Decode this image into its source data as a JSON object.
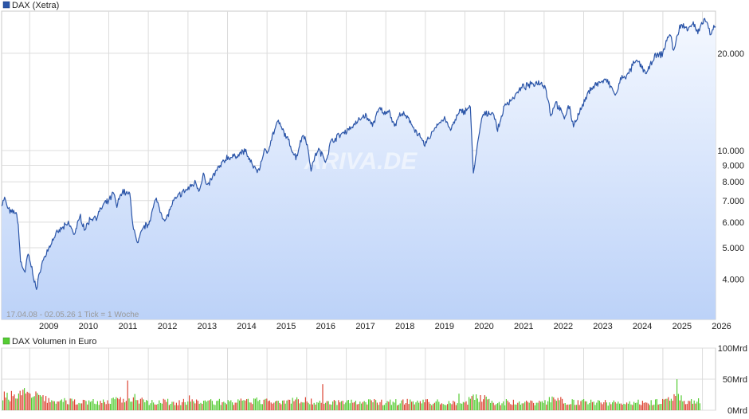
{
  "chart_data": [
    {
      "type": "area",
      "legend": "DAX (Xetra)",
      "x_labels": [
        "2009",
        "2010",
        "2011",
        "2012",
        "2013",
        "2014",
        "2015",
        "2016",
        "2017",
        "2018",
        "2019",
        "2020",
        "2021",
        "2022",
        "2023",
        "2024",
        "2025",
        "2026"
      ],
      "y_scale": "log",
      "y_ticks": [
        "4.000",
        "5.000",
        "6.000",
        "7.000",
        "8.000",
        "9.000",
        "10.000",
        "20.000"
      ],
      "y_tick_values": [
        4000,
        5000,
        6000,
        7000,
        8000,
        9000,
        10000,
        20000
      ],
      "ylim": [
        3000,
        27000
      ],
      "x_range": [
        "2008-04-17",
        "2026-05-02"
      ],
      "series_color": "#2b55a8",
      "info": "17.04.08 - 02.05.26    1 Tick = 1 Woche",
      "watermark": "ARIVA.DE",
      "points": [
        [
          "2008-04-17",
          6800
        ],
        [
          "2008-05-15",
          7100
        ],
        [
          "2008-06-15",
          6600
        ],
        [
          "2008-07-15",
          6400
        ],
        [
          "2008-08-15",
          6500
        ],
        [
          "2008-09-15",
          6100
        ],
        [
          "2008-10-10",
          4500
        ],
        [
          "2008-11-21",
          4200
        ],
        [
          "2008-12-15",
          4800
        ],
        [
          "2009-01-15",
          4400
        ],
        [
          "2009-03-06",
          3700
        ],
        [
          "2009-04-15",
          4400
        ],
        [
          "2009-06-15",
          4900
        ],
        [
          "2009-08-15",
          5400
        ],
        [
          "2009-10-15",
          5700
        ],
        [
          "2009-12-30",
          5950
        ],
        [
          "2010-02-15",
          5500
        ],
        [
          "2010-04-15",
          6250
        ],
        [
          "2010-05-25",
          5700
        ],
        [
          "2010-07-15",
          6150
        ],
        [
          "2010-09-15",
          6250
        ],
        [
          "2010-11-15",
          6800
        ],
        [
          "2010-12-30",
          6950
        ],
        [
          "2011-02-15",
          7400
        ],
        [
          "2011-03-15",
          6700
        ],
        [
          "2011-05-02",
          7500
        ],
        [
          "2011-07-15",
          7300
        ],
        [
          "2011-08-12",
          5900
        ],
        [
          "2011-09-23",
          5100
        ],
        [
          "2011-11-15",
          5800
        ],
        [
          "2011-12-30",
          5900
        ],
        [
          "2012-03-15",
          7100
        ],
        [
          "2012-06-01",
          6000
        ],
        [
          "2012-08-15",
          6900
        ],
        [
          "2012-10-15",
          7300
        ],
        [
          "2012-12-30",
          7600
        ],
        [
          "2013-03-15",
          8000
        ],
        [
          "2013-04-15",
          7500
        ],
        [
          "2013-05-22",
          8500
        ],
        [
          "2013-06-24",
          7700
        ],
        [
          "2013-09-15",
          8600
        ],
        [
          "2013-12-30",
          9550
        ],
        [
          "2014-02-15",
          9500
        ],
        [
          "2014-06-15",
          10000
        ],
        [
          "2014-08-08",
          9100
        ],
        [
          "2014-10-15",
          8600
        ],
        [
          "2014-12-05",
          10000
        ],
        [
          "2014-12-30",
          9800
        ],
        [
          "2015-02-15",
          11000
        ],
        [
          "2015-04-10",
          12300
        ],
        [
          "2015-06-30",
          11000
        ],
        [
          "2015-08-24",
          10000
        ],
        [
          "2015-09-25",
          9500
        ],
        [
          "2015-11-30",
          11300
        ],
        [
          "2015-12-30",
          10700
        ],
        [
          "2016-02-11",
          8800
        ],
        [
          "2016-04-15",
          10100
        ],
        [
          "2016-06-27",
          9300
        ],
        [
          "2016-08-15",
          10700
        ],
        [
          "2016-12-30",
          11500
        ],
        [
          "2017-03-15",
          12000
        ],
        [
          "2017-06-20",
          12900
        ],
        [
          "2017-08-29",
          12000
        ],
        [
          "2017-11-07",
          13500
        ],
        [
          "2017-12-30",
          12900
        ],
        [
          "2018-01-23",
          13500
        ],
        [
          "2018-03-23",
          11900
        ],
        [
          "2018-05-22",
          13100
        ],
        [
          "2018-08-15",
          12300
        ],
        [
          "2018-10-26",
          11200
        ],
        [
          "2018-12-27",
          10400
        ],
        [
          "2019-04-15",
          12000
        ],
        [
          "2019-07-04",
          12600
        ],
        [
          "2019-08-15",
          11500
        ],
        [
          "2019-11-15",
          13200
        ],
        [
          "2019-12-30",
          13250
        ],
        [
          "2020-02-19",
          13800
        ],
        [
          "2020-03-18",
          8500
        ],
        [
          "2020-06-08",
          12800
        ],
        [
          "2020-09-15",
          13200
        ],
        [
          "2020-10-30",
          11550
        ],
        [
          "2020-12-30",
          13700
        ],
        [
          "2021-03-15",
          14500
        ],
        [
          "2021-06-15",
          15700
        ],
        [
          "2021-08-13",
          15900
        ],
        [
          "2021-11-18",
          16300
        ],
        [
          "2021-12-30",
          15900
        ],
        [
          "2022-01-05",
          16200
        ],
        [
          "2022-03-07",
          12800
        ],
        [
          "2022-04-15",
          14200
        ],
        [
          "2022-07-05",
          12600
        ],
        [
          "2022-08-15",
          13800
        ],
        [
          "2022-09-29",
          12000
        ],
        [
          "2022-12-30",
          13900
        ],
        [
          "2023-03-06",
          15600
        ],
        [
          "2023-05-19",
          16200
        ],
        [
          "2023-07-31",
          16500
        ],
        [
          "2023-10-27",
          14800
        ],
        [
          "2023-12-15",
          16800
        ],
        [
          "2024-02-15",
          17100
        ],
        [
          "2024-04-02",
          18500
        ],
        [
          "2024-05-15",
          18900
        ],
        [
          "2024-08-05",
          17300
        ],
        [
          "2024-10-15",
          19500
        ],
        [
          "2024-12-30",
          19900
        ],
        [
          "2025-02-15",
          22500
        ],
        [
          "2025-03-15",
          23000
        ],
        [
          "2025-04-07",
          20000
        ],
        [
          "2025-06-05",
          24300
        ],
        [
          "2025-08-15",
          24000
        ],
        [
          "2025-10-09",
          24700
        ],
        [
          "2025-11-20",
          23100
        ],
        [
          "2025-12-30",
          24500
        ],
        [
          "2026-01-13",
          25400
        ],
        [
          "2026-02-15",
          25000
        ],
        [
          "2026-03-15",
          22400
        ],
        [
          "2026-04-15",
          24000
        ],
        [
          "2026-05-02",
          24200
        ]
      ]
    },
    {
      "type": "bar",
      "legend": "DAX Volumen in Euro",
      "y_ticks": [
        "0Mrd",
        "50Mrd",
        "100Mrd"
      ],
      "y_tick_values": [
        0,
        50,
        100
      ],
      "ylim": [
        0,
        100
      ],
      "colors": {
        "up": "#55cc33",
        "down": "#dd4433"
      },
      "volume_level_mrd": [
        [
          2008.3,
          24
        ],
        [
          2008.8,
          30
        ],
        [
          2009.0,
          26
        ],
        [
          2009.5,
          16
        ],
        [
          2010.0,
          15
        ],
        [
          2010.5,
          15
        ],
        [
          2011.0,
          15
        ],
        [
          2011.6,
          22
        ],
        [
          2012.0,
          15
        ],
        [
          2012.5,
          14
        ],
        [
          2013.0,
          14
        ],
        [
          2013.5,
          15
        ],
        [
          2014.0,
          14
        ],
        [
          2014.6,
          15
        ],
        [
          2015.0,
          15
        ],
        [
          2015.6,
          18
        ],
        [
          2016.0,
          16
        ],
        [
          2016.5,
          15
        ],
        [
          2017.0,
          14
        ],
        [
          2017.5,
          14
        ],
        [
          2018.0,
          14
        ],
        [
          2018.6,
          15
        ],
        [
          2019.0,
          14
        ],
        [
          2019.5,
          13
        ],
        [
          2020.0,
          14
        ],
        [
          2020.25,
          26
        ],
        [
          2020.6,
          15
        ],
        [
          2021.0,
          14
        ],
        [
          2021.5,
          13
        ],
        [
          2022.0,
          15
        ],
        [
          2022.2,
          19
        ],
        [
          2022.6,
          15
        ],
        [
          2023.0,
          14
        ],
        [
          2023.5,
          13
        ],
        [
          2024.0,
          13
        ],
        [
          2024.5,
          14
        ],
        [
          2025.0,
          15
        ],
        [
          2025.3,
          21
        ],
        [
          2025.6,
          15
        ],
        [
          2026.0,
          16
        ],
        [
          2026.33,
          17
        ]
      ]
    }
  ]
}
